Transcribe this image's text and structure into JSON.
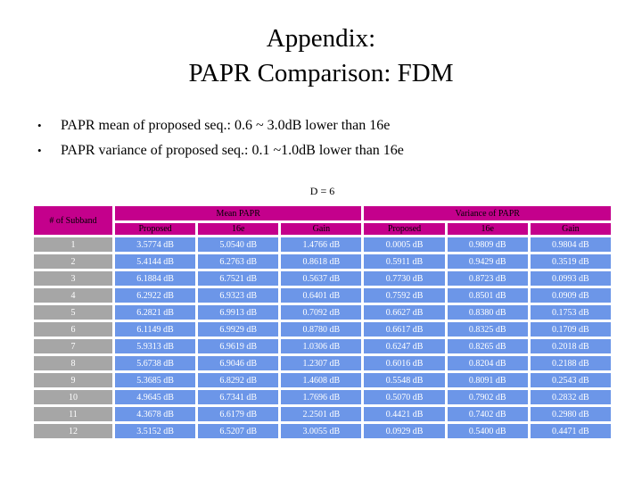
{
  "title": {
    "line1": "Appendix:",
    "line2": "PAPR Comparison: FDM"
  },
  "bullets": [
    {
      "marker": "•",
      "text": "PAPR mean of proposed seq.: 0.6 ~ 3.0dB lower than 16e"
    },
    {
      "marker": "•",
      "text": "PAPR variance of proposed seq.: 0.1 ~1.0dB lower than 16e"
    }
  ],
  "table": {
    "caption": "D = 6",
    "corner_header": "# of Subband",
    "groups": [
      {
        "label": "Mean PAPR"
      },
      {
        "label": "Variance of PAPR"
      }
    ],
    "sub_headers": [
      "Proposed",
      "16e",
      "Gain",
      "Proposed",
      "16e",
      "Gain"
    ],
    "rows": [
      {
        "subband": "1",
        "cells": [
          "3.5774 dB",
          "5.0540 dB",
          "1.4766 dB",
          "0.0005 dB",
          "0.9809 dB",
          "0.9804 dB"
        ]
      },
      {
        "subband": "2",
        "cells": [
          "5.4144 dB",
          "6.2763 dB",
          "0.8618 dB",
          "0.5911 dB",
          "0.9429 dB",
          "0.3519 dB"
        ]
      },
      {
        "subband": "3",
        "cells": [
          "6.1884 dB",
          "6.7521 dB",
          "0.5637 dB",
          "0.7730 dB",
          "0.8723 dB",
          "0.0993 dB"
        ]
      },
      {
        "subband": "4",
        "cells": [
          "6.2922 dB",
          "6.9323 dB",
          "0.6401 dB",
          "0.7592 dB",
          "0.8501 dB",
          "0.0909 dB"
        ]
      },
      {
        "subband": "5",
        "cells": [
          "6.2821 dB",
          "6.9913 dB",
          "0.7092 dB",
          "0.6627 dB",
          "0.8380 dB",
          "0.1753 dB"
        ]
      },
      {
        "subband": "6",
        "cells": [
          "6.1149 dB",
          "6.9929 dB",
          "0.8780 dB",
          "0.6617 dB",
          "0.8325 dB",
          "0.1709 dB"
        ]
      },
      {
        "subband": "7",
        "cells": [
          "5.9313 dB",
          "6.9619 dB",
          "1.0306 dB",
          "0.6247 dB",
          "0.8265 dB",
          "0.2018 dB"
        ]
      },
      {
        "subband": "8",
        "cells": [
          "5.6738 dB",
          "6.9046 dB",
          "1.2307 dB",
          "0.6016 dB",
          "0.8204 dB",
          "0.2188 dB"
        ]
      },
      {
        "subband": "9",
        "cells": [
          "5.3685 dB",
          "6.8292 dB",
          "1.4608 dB",
          "0.5548 dB",
          "0.8091 dB",
          "0.2543 dB"
        ]
      },
      {
        "subband": "10",
        "cells": [
          "4.9645 dB",
          "6.7341 dB",
          "1.7696 dB",
          "0.5070 dB",
          "0.7902 dB",
          "0.2832 dB"
        ]
      },
      {
        "subband": "11",
        "cells": [
          "4.3678 dB",
          "6.6179 dB",
          "2.2501 dB",
          "0.4421 dB",
          "0.7402 dB",
          "0.2980 dB"
        ]
      },
      {
        "subband": "12",
        "cells": [
          "3.5152 dB",
          "6.5207 dB",
          "3.0055 dB",
          "0.0929 dB",
          "0.5400 dB",
          "0.4471 dB"
        ]
      }
    ]
  },
  "colors": {
    "header_bg": "#C4008C",
    "data_cell_bg": "#6C96E8",
    "row_label_bg": "#A6A6A6",
    "data_text": "#FFFFFF",
    "header_text": "#000000"
  }
}
